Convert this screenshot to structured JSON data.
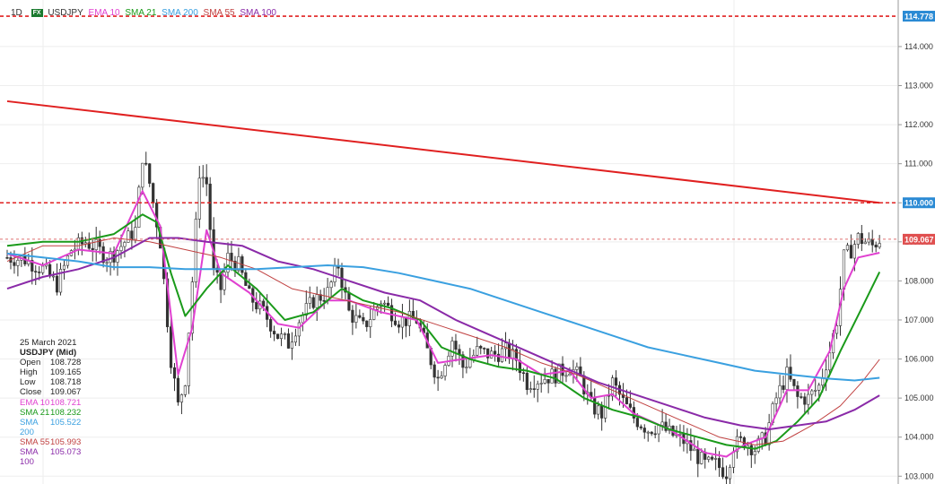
{
  "header": {
    "timeframe": "1D",
    "badge": "FX",
    "symbol": "USDJPY",
    "indicators": [
      {
        "label": "EMA 10",
        "color": "#e040d0"
      },
      {
        "label": "SMA 21",
        "color": "#1a9a1a"
      },
      {
        "label": "SMA 200",
        "color": "#3aa0e0"
      },
      {
        "label": "SMA 55",
        "color": "#c04040"
      },
      {
        "label": "SMA 100",
        "color": "#8a2aa8"
      }
    ]
  },
  "info": {
    "date": "25 March 2021",
    "instrument": "USDJPY (Mid)",
    "rows": [
      {
        "label": "Open",
        "value": "108.728",
        "color": "#222222"
      },
      {
        "label": "High",
        "value": "109.165",
        "color": "#222222"
      },
      {
        "label": "Low",
        "value": "108.718",
        "color": "#222222"
      },
      {
        "label": "Close",
        "value": "109.067",
        "color": "#222222"
      },
      {
        "label": "EMA 10",
        "value": "108.721",
        "color": "#e040d0"
      },
      {
        "label": "SMA 21",
        "value": "108.232",
        "color": "#1a9a1a"
      },
      {
        "label": "SMA 200",
        "value": "105.522",
        "color": "#3aa0e0"
      },
      {
        "label": "SMA 55",
        "value": "105.993",
        "color": "#c04040"
      },
      {
        "label": "SMA 100",
        "value": "105.073",
        "color": "#8a2aa8"
      }
    ]
  },
  "chart_data": {
    "type": "line",
    "ylim": [
      102.8,
      115.1
    ],
    "y_ticks": [
      "103.000",
      "104.000",
      "105.000",
      "106.000",
      "107.000",
      "108.000",
      "109.000",
      "110.000",
      "111.000",
      "112.000",
      "113.000",
      "114.000"
    ],
    "price_tags": [
      {
        "value": "114.778",
        "color": "#2a8ad4"
      },
      {
        "value": "110.000",
        "color": "#2a8ad4"
      },
      {
        "value": "109.067",
        "color": "#e05050"
      }
    ],
    "horizontal_levels": [
      {
        "y": 114.778,
        "color": "#e02020",
        "style": "dashed"
      },
      {
        "y": 110.0,
        "color": "#e02020",
        "style": "dashed"
      },
      {
        "y": 109.067,
        "color": "#e07070",
        "style": "dashed-thin"
      }
    ],
    "trendline": {
      "from": {
        "bar": 0,
        "y": 112.6
      },
      "to": {
        "bar": 245,
        "y": 110.0
      },
      "color": "#e02020"
    },
    "price_anchors": [
      [
        0,
        108.6
      ],
      [
        5,
        108.55
      ],
      [
        10,
        108.3
      ],
      [
        14,
        107.9
      ],
      [
        18,
        108.8
      ],
      [
        22,
        109.0
      ],
      [
        25,
        108.85
      ],
      [
        28,
        108.6
      ],
      [
        30,
        108.7
      ],
      [
        33,
        109.0
      ],
      [
        36,
        109.3
      ],
      [
        38,
        111.2
      ],
      [
        40,
        110.5
      ],
      [
        43,
        109.0
      ],
      [
        46,
        106.0
      ],
      [
        48,
        104.8
      ],
      [
        50,
        105.5
      ],
      [
        52,
        108.0
      ],
      [
        54,
        110.8
      ],
      [
        56,
        110.5
      ],
      [
        58,
        108.2
      ],
      [
        60,
        107.8
      ],
      [
        62,
        108.6
      ],
      [
        65,
        108.4
      ],
      [
        68,
        107.6
      ],
      [
        72,
        107.2
      ],
      [
        76,
        106.6
      ],
      [
        79,
        106.4
      ],
      [
        82,
        107.0
      ],
      [
        86,
        107.5
      ],
      [
        90,
        107.7
      ],
      [
        93,
        108.4
      ],
      [
        96,
        107.2
      ],
      [
        100,
        106.8
      ],
      [
        105,
        107.5
      ],
      [
        110,
        107.0
      ],
      [
        115,
        107.0
      ],
      [
        118,
        106.2
      ],
      [
        121,
        105.5
      ],
      [
        125,
        106.5
      ],
      [
        128,
        105.8
      ],
      [
        132,
        106.2
      ],
      [
        136,
        106.1
      ],
      [
        140,
        106.2
      ],
      [
        143,
        106.0
      ],
      [
        146,
        105.4
      ],
      [
        150,
        105.5
      ],
      [
        154,
        105.6
      ],
      [
        158,
        105.8
      ],
      [
        161,
        105.5
      ],
      [
        164,
        104.8
      ],
      [
        167,
        104.6
      ],
      [
        170,
        105.4
      ],
      [
        173,
        104.9
      ],
      [
        176,
        104.5
      ],
      [
        180,
        104.2
      ],
      [
        183,
        104.3
      ],
      [
        186,
        104.1
      ],
      [
        190,
        103.9
      ],
      [
        193,
        103.6
      ],
      [
        196,
        103.3
      ],
      [
        199,
        103.3
      ],
      [
        202,
        103.1
      ],
      [
        204,
        103.8
      ],
      [
        207,
        103.9
      ],
      [
        210,
        103.7
      ],
      [
        213,
        104.0
      ],
      [
        216,
        105.0
      ],
      [
        219,
        105.6
      ],
      [
        222,
        105.0
      ],
      [
        225,
        105.0
      ],
      [
        228,
        105.3
      ],
      [
        231,
        106.2
      ],
      [
        233,
        107.0
      ],
      [
        235,
        108.6
      ],
      [
        237,
        108.8
      ],
      [
        239,
        109.1
      ],
      [
        241,
        109.0
      ],
      [
        243,
        108.9
      ],
      [
        245,
        109.07
      ]
    ],
    "series": [
      {
        "name": "EMA 10",
        "color": "#e040d0",
        "values": [
          [
            0,
            108.7
          ],
          [
            10,
            108.4
          ],
          [
            20,
            108.8
          ],
          [
            30,
            108.7
          ],
          [
            38,
            110.3
          ],
          [
            43,
            109.4
          ],
          [
            48,
            105.6
          ],
          [
            52,
            106.8
          ],
          [
            56,
            109.3
          ],
          [
            60,
            108.2
          ],
          [
            68,
            107.7
          ],
          [
            76,
            106.9
          ],
          [
            82,
            106.8
          ],
          [
            90,
            107.5
          ],
          [
            96,
            107.5
          ],
          [
            105,
            107.2
          ],
          [
            115,
            107.0
          ],
          [
            121,
            105.9
          ],
          [
            128,
            106.0
          ],
          [
            136,
            106.1
          ],
          [
            143,
            106.0
          ],
          [
            150,
            105.6
          ],
          [
            158,
            105.7
          ],
          [
            164,
            105.0
          ],
          [
            170,
            105.1
          ],
          [
            176,
            104.6
          ],
          [
            186,
            104.2
          ],
          [
            196,
            103.6
          ],
          [
            202,
            103.5
          ],
          [
            207,
            103.8
          ],
          [
            213,
            104.0
          ],
          [
            219,
            105.2
          ],
          [
            225,
            105.2
          ],
          [
            231,
            106.2
          ],
          [
            235,
            107.8
          ],
          [
            239,
            108.6
          ],
          [
            245,
            108.72
          ]
        ]
      },
      {
        "name": "SMA 21",
        "color": "#1a9a1a",
        "values": [
          [
            0,
            108.9
          ],
          [
            10,
            109.0
          ],
          [
            20,
            109.0
          ],
          [
            30,
            109.2
          ],
          [
            38,
            109.7
          ],
          [
            42,
            109.5
          ],
          [
            46,
            108.2
          ],
          [
            50,
            107.1
          ],
          [
            56,
            107.8
          ],
          [
            62,
            108.4
          ],
          [
            70,
            107.8
          ],
          [
            78,
            107.0
          ],
          [
            86,
            107.2
          ],
          [
            94,
            107.8
          ],
          [
            100,
            107.5
          ],
          [
            108,
            107.3
          ],
          [
            116,
            107.0
          ],
          [
            122,
            106.3
          ],
          [
            130,
            106.0
          ],
          [
            138,
            105.8
          ],
          [
            146,
            105.7
          ],
          [
            154,
            105.5
          ],
          [
            162,
            105.0
          ],
          [
            170,
            104.7
          ],
          [
            178,
            104.5
          ],
          [
            186,
            104.2
          ],
          [
            194,
            104.0
          ],
          [
            202,
            103.8
          ],
          [
            210,
            103.7
          ],
          [
            216,
            103.9
          ],
          [
            222,
            104.4
          ],
          [
            228,
            105.0
          ],
          [
            234,
            106.2
          ],
          [
            240,
            107.3
          ],
          [
            245,
            108.23
          ]
        ]
      },
      {
        "name": "SMA 55",
        "color": "#c04040",
        "values": [
          [
            0,
            108.5
          ],
          [
            10,
            108.9
          ],
          [
            20,
            108.9
          ],
          [
            30,
            109.1
          ],
          [
            40,
            109.0
          ],
          [
            50,
            108.8
          ],
          [
            60,
            108.6
          ],
          [
            70,
            108.3
          ],
          [
            80,
            107.8
          ],
          [
            90,
            107.6
          ],
          [
            100,
            107.4
          ],
          [
            110,
            107.2
          ],
          [
            120,
            106.9
          ],
          [
            130,
            106.6
          ],
          [
            140,
            106.3
          ],
          [
            150,
            105.9
          ],
          [
            160,
            105.6
          ],
          [
            170,
            105.2
          ],
          [
            180,
            104.8
          ],
          [
            190,
            104.4
          ],
          [
            200,
            104.0
          ],
          [
            210,
            103.8
          ],
          [
            218,
            103.9
          ],
          [
            226,
            104.3
          ],
          [
            234,
            104.8
          ],
          [
            240,
            105.4
          ],
          [
            245,
            105.99
          ]
        ]
      },
      {
        "name": "SMA 100",
        "color": "#8a2aa8",
        "values": [
          [
            0,
            107.8
          ],
          [
            10,
            108.1
          ],
          [
            20,
            108.3
          ],
          [
            30,
            108.6
          ],
          [
            40,
            109.1
          ],
          [
            48,
            109.1
          ],
          [
            56,
            109.0
          ],
          [
            66,
            108.9
          ],
          [
            76,
            108.5
          ],
          [
            86,
            108.3
          ],
          [
            96,
            108.0
          ],
          [
            106,
            107.7
          ],
          [
            116,
            107.5
          ],
          [
            126,
            107.0
          ],
          [
            136,
            106.6
          ],
          [
            146,
            106.2
          ],
          [
            156,
            105.8
          ],
          [
            166,
            105.4
          ],
          [
            176,
            105.1
          ],
          [
            186,
            104.8
          ],
          [
            196,
            104.5
          ],
          [
            206,
            104.3
          ],
          [
            214,
            104.2
          ],
          [
            222,
            104.3
          ],
          [
            230,
            104.4
          ],
          [
            238,
            104.7
          ],
          [
            245,
            105.07
          ]
        ]
      },
      {
        "name": "SMA 200",
        "color": "#3aa0e0",
        "values": [
          [
            0,
            108.7
          ],
          [
            10,
            108.6
          ],
          [
            20,
            108.5
          ],
          [
            30,
            108.35
          ],
          [
            40,
            108.35
          ],
          [
            50,
            108.3
          ],
          [
            60,
            108.3
          ],
          [
            70,
            108.3
          ],
          [
            80,
            108.35
          ],
          [
            90,
            108.4
          ],
          [
            100,
            108.35
          ],
          [
            110,
            108.2
          ],
          [
            120,
            108.0
          ],
          [
            130,
            107.8
          ],
          [
            140,
            107.5
          ],
          [
            150,
            107.2
          ],
          [
            160,
            106.9
          ],
          [
            170,
            106.6
          ],
          [
            180,
            106.3
          ],
          [
            190,
            106.1
          ],
          [
            200,
            105.9
          ],
          [
            210,
            105.7
          ],
          [
            220,
            105.6
          ],
          [
            230,
            105.5
          ],
          [
            238,
            105.45
          ],
          [
            245,
            105.52
          ]
        ]
      }
    ]
  }
}
